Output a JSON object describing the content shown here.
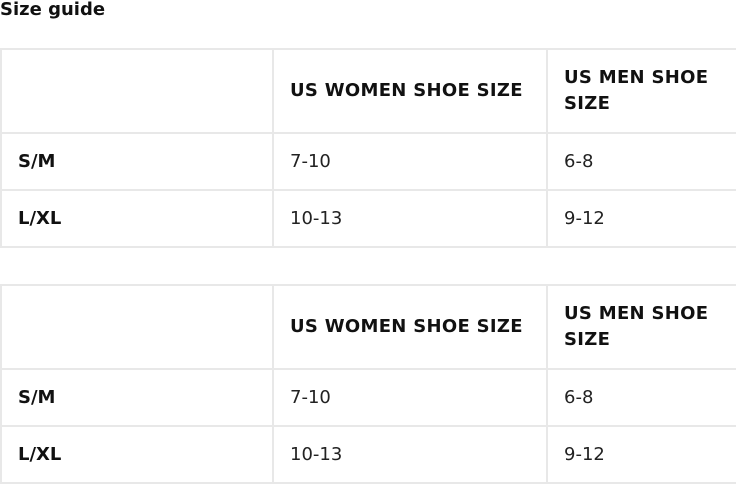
{
  "title": "Size guide",
  "tables": [
    {
      "headers": [
        "",
        "US WOMEN SHOE SIZE",
        "US MEN SHOE SIZE"
      ],
      "rows": [
        [
          "S/M",
          "7-10",
          "6-8"
        ],
        [
          "L/XL",
          "10-13",
          "9-12"
        ]
      ]
    },
    {
      "headers": [
        "",
        "US WOMEN SHOE SIZE",
        "US MEN SHOE SIZE"
      ],
      "rows": [
        [
          "S/M",
          "7-10",
          "6-8"
        ],
        [
          "L/XL",
          "10-13",
          "9-12"
        ]
      ]
    }
  ]
}
